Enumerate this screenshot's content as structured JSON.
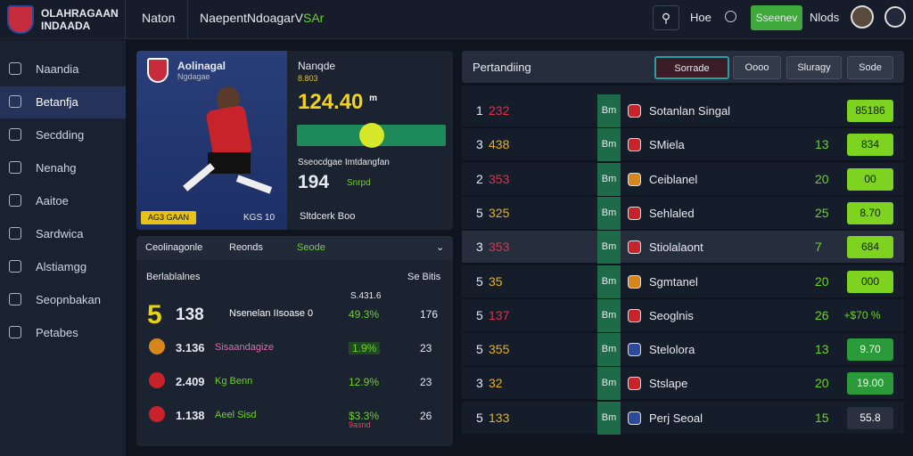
{
  "header": {
    "logo_line1": "OLAHRAGAAN",
    "logo_line2": "INDAADA",
    "nav1": "Naton",
    "nav2": "NaepentNdoagarV",
    "nav2_accent": "SAr",
    "hoe": "Hoe",
    "button": "Sseenev",
    "nlods": "Nlods"
  },
  "sidebar": [
    "Naandia",
    "Betanfja",
    "Secdding",
    "Nenahg",
    "Aaitoe",
    "Sardwica",
    "Alstiamgg",
    "Seopnbakan",
    "Petabes"
  ],
  "player": {
    "club": "Aolinagal",
    "club_sub": "Ngdagae",
    "badge": "AG3 GAAN",
    "code": "KGS 10",
    "label": "Nanqde",
    "label_sub": "8.803",
    "value": "124.40",
    "value_unit": "m",
    "stat_caption": "Sseocdgae Imtdangfan",
    "stat_value": "194",
    "stat_sub": "Snrpd",
    "footer": "Sltdcerk Boo"
  },
  "tabs": [
    "Ceolinagonle",
    "Reonds",
    "Seode"
  ],
  "stats": {
    "head_left": "Berlablalnes",
    "head_right": "Se Bitis",
    "head_mid": "S.431.6",
    "rows": [
      [
        "5",
        "138",
        "Nsenelan IIsoase 0",
        "49.3%",
        "176"
      ],
      [
        "",
        "3.136",
        "Sisaandagize",
        "1.9%",
        "23"
      ],
      [
        "",
        "2.409",
        "Kg Benn",
        "12.9%",
        "23"
      ],
      [
        "",
        "1.138",
        "Aeel Sisd",
        "$3.3%",
        "26"
      ]
    ],
    "last_sub": "9asnd"
  },
  "ranking": {
    "title": "Pertandiing",
    "buttons": [
      "Sorrade",
      "Oooo",
      "Sluragy",
      "Sode"
    ],
    "rows": [
      [
        "1",
        "232",
        "Bm",
        "Sotanlan Singal",
        "",
        "85186"
      ],
      [
        "3",
        "438",
        "Bm",
        "SMiela",
        "13",
        "834"
      ],
      [
        "2",
        "353",
        "Bm",
        "Ceiblanel",
        "20",
        "00"
      ],
      [
        "5",
        "325",
        "Bm",
        "Sehlaled",
        "25",
        "8.70"
      ],
      [
        "3",
        "353",
        "Bm",
        "Stiolalaont",
        "7",
        "684"
      ],
      [
        "5",
        "35",
        "Bm",
        "Sgmtanel",
        "20",
        "000"
      ],
      [
        "5",
        "137",
        "Bm",
        "Seoglnis",
        "26",
        "+$70 %"
      ],
      [
        "5",
        "355",
        "Bm",
        "Stelolora",
        "13",
        "9.70"
      ],
      [
        "3",
        "32",
        "Bm",
        "Stslape",
        "20",
        "19.00"
      ],
      [
        "5",
        "133",
        "Bm",
        "Perj Seoal",
        "15",
        "55.8"
      ]
    ]
  }
}
